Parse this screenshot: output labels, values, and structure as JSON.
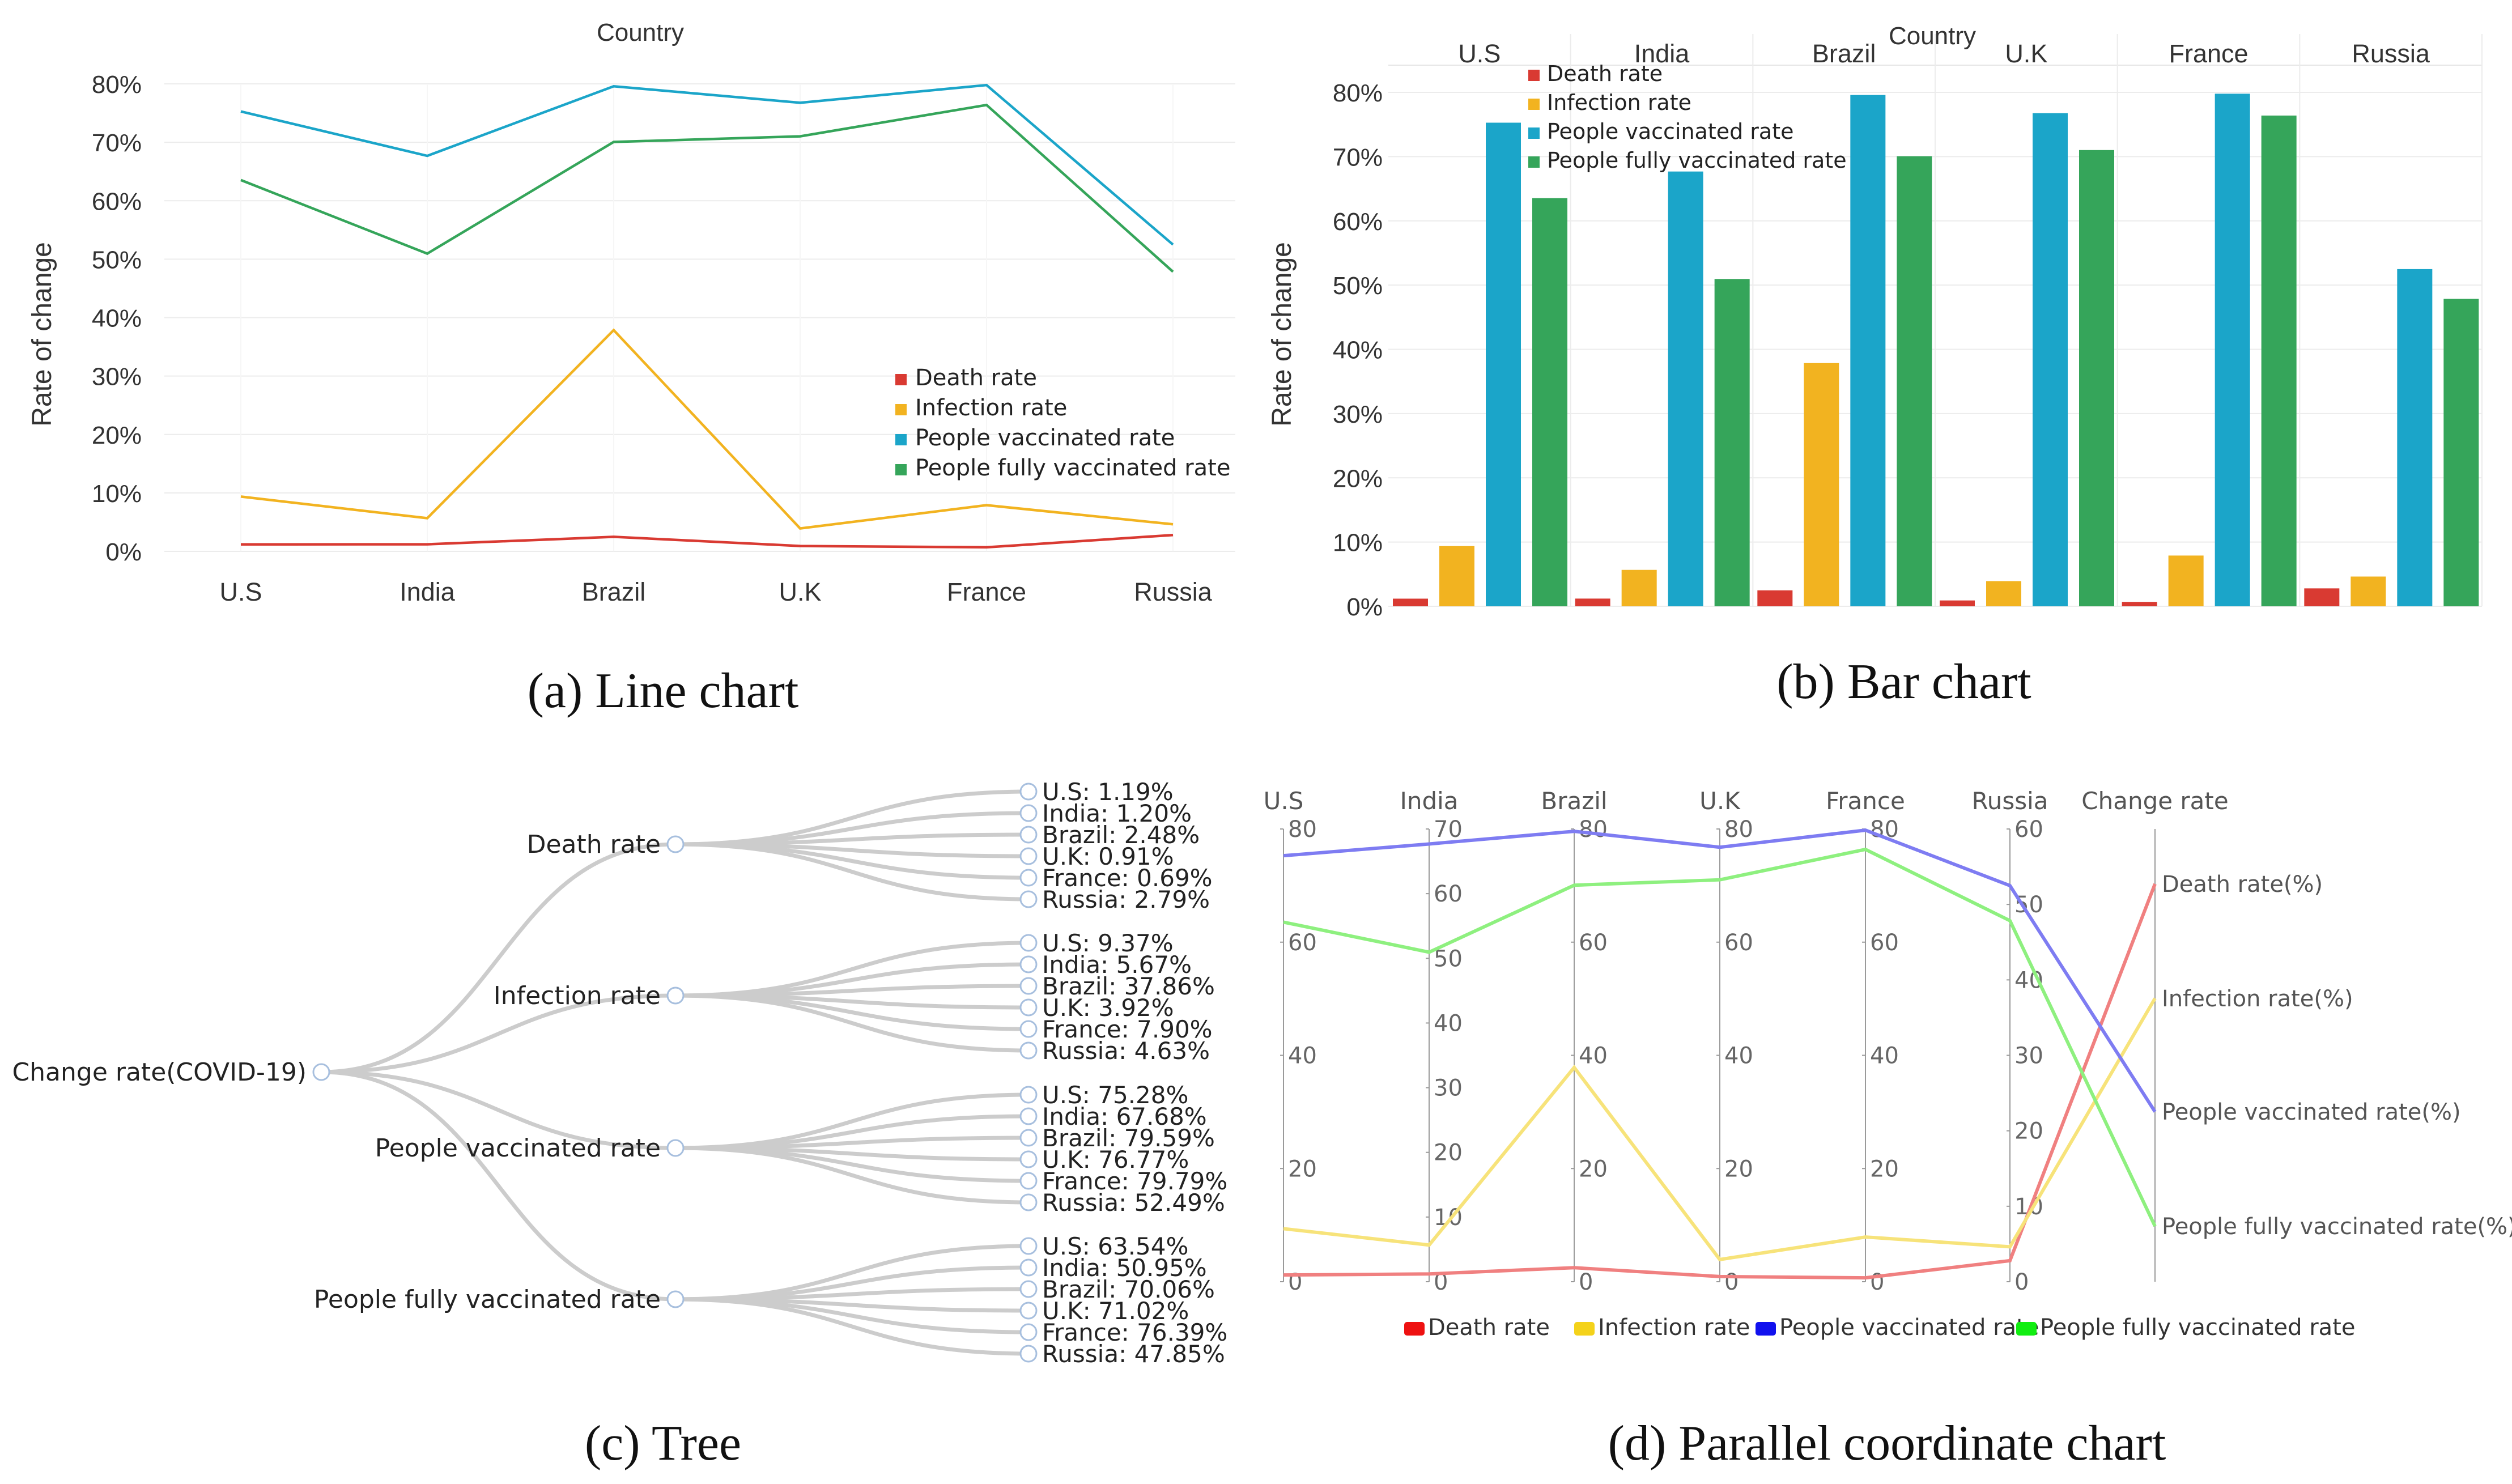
{
  "colors": {
    "death": "#d93a32",
    "infection": "#f2b320",
    "vaccinated": "#1ba5c9",
    "fully": "#35a55a",
    "pc_death": "#f08080",
    "pc_infection": "#f7e37a",
    "pc_vaccinated": "#7e7cf2",
    "pc_fully": "#8ef07f",
    "pc_leg_death": "#ee1111",
    "pc_leg_infection": "#f4d21a",
    "pc_leg_vaccinated": "#1111ee",
    "pc_leg_fully": "#11ee11",
    "tree_link": "#cccccc",
    "tree_node": "#a7bfde"
  },
  "chart_data": [
    {
      "id": "a",
      "type": "line",
      "title": "Country",
      "caption": "(a) Line chart",
      "xlabel": "Country",
      "ylabel": "Rate of change",
      "categories": [
        "U.S",
        "India",
        "Brazil",
        "U.K",
        "France",
        "Russia"
      ],
      "ylim": [
        0,
        80
      ],
      "yticks": [
        "0%",
        "10%",
        "20%",
        "30%",
        "40%",
        "50%",
        "60%",
        "70%",
        "80%"
      ],
      "legend_position": "bottom-right",
      "series": [
        {
          "name": "Death rate",
          "key": "death",
          "values": [
            1.19,
            1.2,
            2.48,
            0.91,
            0.69,
            2.79
          ]
        },
        {
          "name": "Infection rate",
          "key": "infection",
          "values": [
            9.37,
            5.67,
            37.86,
            3.92,
            7.9,
            4.63
          ]
        },
        {
          "name": "People vaccinated rate",
          "key": "vaccinated",
          "values": [
            75.28,
            67.68,
            79.59,
            76.77,
            79.79,
            52.49
          ]
        },
        {
          "name": "People fully vaccinated rate",
          "key": "fully",
          "values": [
            63.54,
            50.95,
            70.06,
            71.02,
            76.39,
            47.85
          ]
        }
      ]
    },
    {
      "id": "b",
      "type": "bar",
      "title": "Country",
      "caption": "(b) Bar chart",
      "ylabel": "Rate of change",
      "categories": [
        "U.S",
        "India",
        "Brazil",
        "U.K",
        "France",
        "Russia"
      ],
      "ylim": [
        0,
        80
      ],
      "yticks": [
        "0%",
        "10%",
        "20%",
        "30%",
        "40%",
        "50%",
        "60%",
        "70%",
        "80%"
      ],
      "legend_position": "top-left",
      "series": [
        {
          "name": "Death rate",
          "key": "death",
          "values": [
            1.19,
            1.2,
            2.48,
            0.91,
            0.69,
            2.79
          ]
        },
        {
          "name": "Infection rate",
          "key": "infection",
          "values": [
            9.37,
            5.67,
            37.86,
            3.92,
            7.9,
            4.63
          ]
        },
        {
          "name": "People vaccinated rate",
          "key": "vaccinated",
          "values": [
            75.28,
            67.68,
            79.59,
            76.77,
            79.79,
            52.49
          ]
        },
        {
          "name": "People fully vaccinated rate",
          "key": "fully",
          "values": [
            63.54,
            50.95,
            70.06,
            71.02,
            76.39,
            47.85
          ]
        }
      ]
    },
    {
      "id": "c",
      "type": "tree",
      "caption": "(c) Tree",
      "root": "Change rate(COVID-19)",
      "branches": [
        {
          "name": "Death rate",
          "leaves": [
            "U.S: 1.19%",
            "India: 1.20%",
            "Brazil: 2.48%",
            "U.K: 0.91%",
            "France: 0.69%",
            "Russia: 2.79%"
          ]
        },
        {
          "name": "Infection rate",
          "leaves": [
            "U.S: 9.37%",
            "India: 5.67%",
            "Brazil: 37.86%",
            "U.K: 3.92%",
            "France: 7.90%",
            "Russia: 4.63%"
          ]
        },
        {
          "name": "People vaccinated rate",
          "leaves": [
            "U.S: 75.28%",
            "India: 67.68%",
            "Brazil: 79.59%",
            "U.K: 76.77%",
            "France: 79.79%",
            "Russia: 52.49%"
          ]
        },
        {
          "name": "People fully vaccinated rate",
          "leaves": [
            "U.S: 63.54%",
            "India: 50.95%",
            "Brazil: 70.06%",
            "U.K: 71.02%",
            "France: 76.39%",
            "Russia: 47.85%"
          ]
        }
      ]
    },
    {
      "id": "d",
      "type": "parallel",
      "caption": "(d) Parallel coordinate chart",
      "axes": [
        {
          "name": "U.S",
          "range": [
            0,
            80
          ],
          "ticks": [
            0,
            20,
            40,
            60,
            80
          ]
        },
        {
          "name": "India",
          "range": [
            0,
            70
          ],
          "ticks": [
            0,
            10,
            20,
            30,
            40,
            50,
            60,
            70
          ]
        },
        {
          "name": "Brazil",
          "range": [
            0,
            80
          ],
          "ticks": [
            0,
            20,
            40,
            60,
            80
          ]
        },
        {
          "name": "U.K",
          "range": [
            0,
            80
          ],
          "ticks": [
            0,
            20,
            40,
            60,
            80
          ]
        },
        {
          "name": "France",
          "range": [
            0,
            80
          ],
          "ticks": [
            0,
            20,
            40,
            60,
            80
          ]
        },
        {
          "name": "Russia",
          "range": [
            0,
            60
          ],
          "ticks": [
            0,
            10,
            20,
            30,
            40,
            50,
            60
          ]
        }
      ],
      "category_axis": {
        "name": "Change rate",
        "categories": [
          "Death rate(%)",
          "Infection rate(%)",
          "People vaccinated rate(%)",
          "People fully vaccinated rate(%)"
        ]
      },
      "legend_position": "bottom-center",
      "series": [
        {
          "name": "Death rate",
          "key": "death",
          "values": [
            1.19,
            1.2,
            2.48,
            0.91,
            0.69,
            2.79
          ],
          "category": 0
        },
        {
          "name": "Infection rate",
          "key": "infection",
          "values": [
            9.37,
            5.67,
            37.86,
            3.92,
            7.9,
            4.63
          ],
          "category": 1
        },
        {
          "name": "People vaccinated rate",
          "key": "vaccinated",
          "values": [
            75.28,
            67.68,
            79.59,
            76.77,
            79.79,
            52.49
          ],
          "category": 2
        },
        {
          "name": "People fully vaccinated rate",
          "key": "fully",
          "values": [
            63.54,
            50.95,
            70.06,
            71.02,
            76.39,
            47.85
          ],
          "category": 3
        }
      ]
    }
  ]
}
